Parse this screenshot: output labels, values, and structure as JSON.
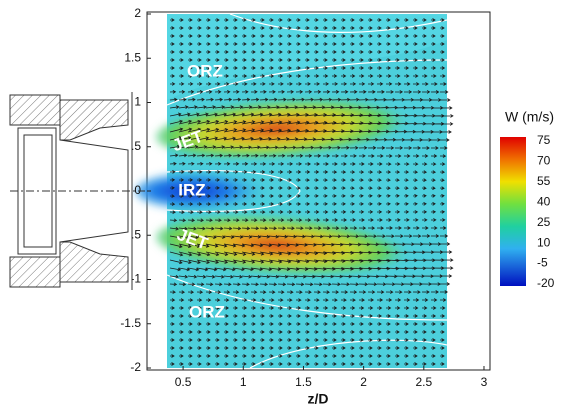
{
  "chart_data": {
    "type": "contour",
    "x_label": "z/D",
    "xlim": [
      0.2,
      3.05
    ],
    "ylim": [
      -2,
      2
    ],
    "xticks": [
      0.5,
      1,
      1.5,
      2,
      2.5,
      3
    ],
    "yticks": [
      -2,
      -1.5,
      -1,
      -0.5,
      0,
      0.5,
      1,
      1.5,
      2
    ],
    "colorbar": {
      "title": "W (m/s)",
      "ticks": [
        75,
        70,
        55,
        40,
        25,
        10,
        -5,
        -20
      ]
    },
    "annotations": [
      "ORZ",
      "JET",
      "IRZ",
      "JET",
      "ORZ"
    ]
  }
}
